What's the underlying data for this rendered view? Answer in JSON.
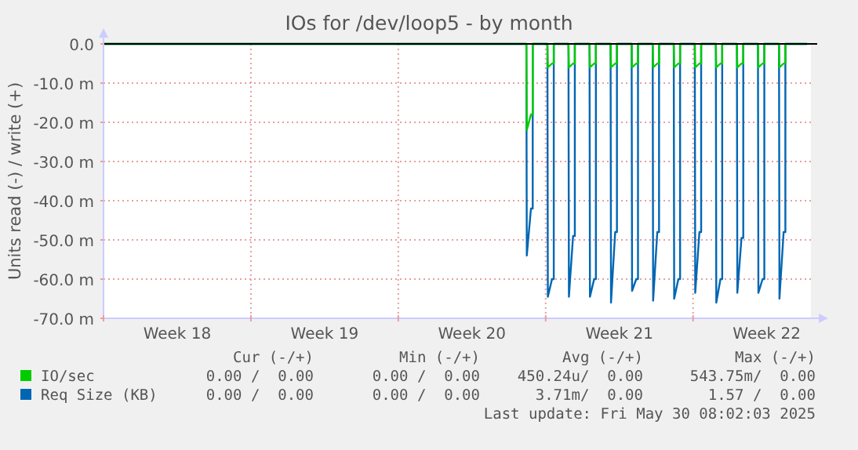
{
  "chart_data": {
    "type": "line",
    "title": "IOs for /dev/loop5 - by month",
    "ylabel": "Units read (-) / write (+)",
    "x": [
      "2025-04-28T00:00",
      "2025-05-18T02:00",
      "2025-05-18T02:30",
      "2025-05-18T07:15",
      "2025-05-18T09:15",
      "2025-05-18T09:15",
      "2025-05-19T02:00",
      "2025-05-19T02:30",
      "2025-05-19T07:15",
      "2025-05-19T09:15",
      "2025-05-19T09:15",
      "2025-05-20T02:00",
      "2025-05-20T02:30",
      "2025-05-20T07:15",
      "2025-05-20T09:15",
      "2025-05-20T09:15",
      "2025-05-21T02:00",
      "2025-05-21T02:30",
      "2025-05-21T07:15",
      "2025-05-21T09:15",
      "2025-05-21T09:15",
      "2025-05-22T02:00",
      "2025-05-22T02:30",
      "2025-05-22T07:15",
      "2025-05-22T09:15",
      "2025-05-22T09:15",
      "2025-05-23T02:00",
      "2025-05-23T02:30",
      "2025-05-23T07:15",
      "2025-05-23T09:15",
      "2025-05-23T09:15",
      "2025-05-24T02:00",
      "2025-05-24T02:30",
      "2025-05-24T07:15",
      "2025-05-24T09:15",
      "2025-05-24T09:15",
      "2025-05-25T02:00",
      "2025-05-25T02:30",
      "2025-05-25T07:15",
      "2025-05-25T09:15",
      "2025-05-25T09:15",
      "2025-05-26T02:00",
      "2025-05-26T02:30",
      "2025-05-26T07:15",
      "2025-05-26T09:15",
      "2025-05-26T09:15",
      "2025-05-27T02:00",
      "2025-05-27T02:30",
      "2025-05-27T07:15",
      "2025-05-27T09:15",
      "2025-05-27T09:15",
      "2025-05-28T02:00",
      "2025-05-28T02:30",
      "2025-05-28T07:15",
      "2025-05-28T09:15",
      "2025-05-28T09:15",
      "2025-05-29T02:00",
      "2025-05-29T02:30",
      "2025-05-29T07:15",
      "2025-05-29T09:15",
      "2025-05-29T09:15",
      "2025-05-30T02:00",
      "2025-05-30T02:30",
      "2025-05-30T07:15",
      "2025-05-30T09:15",
      "2025-05-30T09:15",
      "2025-05-31T10:00"
    ],
    "series": [
      {
        "name": "Req Size (KB)",
        "color": "#0066b3",
        "values": [
          0,
          0,
          -54,
          -42,
          -42,
          0,
          0,
          -64.5,
          -60,
          -60,
          0,
          0,
          -64.5,
          -49,
          -49,
          0,
          0,
          -64.5,
          -60,
          -60,
          0,
          0,
          -66,
          -48,
          -48,
          0,
          0,
          -63,
          -60,
          -60,
          0,
          0,
          -65.5,
          -48,
          -48,
          0,
          0,
          -65,
          -60,
          -60,
          0,
          0,
          -63.5,
          -48,
          -48,
          0,
          0,
          -66,
          -60,
          -60,
          0,
          0,
          -63.5,
          -49.5,
          -49.5,
          0,
          0,
          -63.5,
          -60,
          -60,
          0,
          0,
          -65,
          -48,
          -48,
          0,
          0
        ]
      },
      {
        "name": "IO/sec",
        "color": "#00cc00",
        "values": [
          0,
          0,
          -22,
          -18,
          -18,
          0,
          0,
          -6,
          -5,
          -5,
          0,
          0,
          -6,
          -5,
          -5,
          0,
          0,
          -6,
          -5,
          -5,
          0,
          0,
          -6,
          -5,
          -5,
          0,
          0,
          -6,
          -5,
          -5,
          0,
          0,
          -6,
          -5,
          -5,
          0,
          0,
          -6,
          -5,
          -5,
          0,
          0,
          -6,
          -5,
          -5,
          0,
          0,
          -6,
          -5,
          -5,
          0,
          0,
          -6,
          -5,
          -5,
          0,
          0,
          -6,
          -5,
          -5,
          0,
          0,
          -6,
          -5,
          -5,
          0,
          0
        ]
      }
    ],
    "xlim": [
      "2025-04-28T00:00",
      "2025-05-31T14:24"
    ],
    "xticks": [
      {
        "value": "2025-04-28T00:00",
        "label": null
      },
      {
        "value": "2025-05-01T12:00",
        "label": "Week 18"
      },
      {
        "value": "2025-05-05T00:00",
        "label": null
      },
      {
        "value": "2025-05-08T12:00",
        "label": "Week 19"
      },
      {
        "value": "2025-05-12T00:00",
        "label": null
      },
      {
        "value": "2025-05-15T12:00",
        "label": "Week 20"
      },
      {
        "value": "2025-05-19T00:00",
        "label": null
      },
      {
        "value": "2025-05-22T12:00",
        "label": "Week 21"
      },
      {
        "value": "2025-05-26T00:00",
        "label": null
      },
      {
        "value": "2025-05-29T12:00",
        "label": "Week 22"
      }
    ],
    "ylim": [
      -70,
      0
    ],
    "yticks": [
      {
        "value": 0,
        "label": "0.0"
      },
      {
        "value": -10,
        "label": "-10.0 m"
      },
      {
        "value": -20,
        "label": "-20.0 m"
      },
      {
        "value": -30,
        "label": "-30.0 m"
      },
      {
        "value": -40,
        "label": "-40.0 m"
      },
      {
        "value": -50,
        "label": "-50.0 m"
      },
      {
        "value": -60,
        "label": "-60.0 m"
      },
      {
        "value": -70,
        "label": "-70.0 m"
      }
    ],
    "grid": true,
    "legend": "bottom",
    "line_style": "solid",
    "marker": "none",
    "annotations": [
      "Cur (-/+)",
      "Min (-/+)",
      "Avg (-/+)",
      "Max (-/+)",
      "0.00 /  0.00",
      "0.00 /  0.00",
      "450.24u/  0.00",
      "543.75m/  0.00",
      "0.00 /  0.00",
      "0.00 /  0.00",
      "3.71m/  0.00",
      "1.57 /  0.00",
      "Last update: Fri May 30 08:02:03 2025"
    ]
  }
}
